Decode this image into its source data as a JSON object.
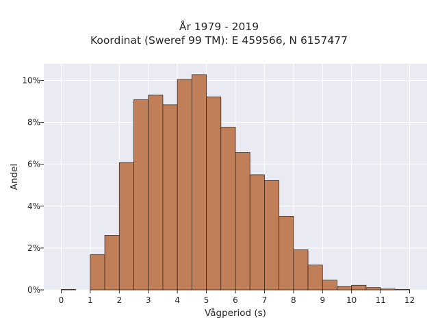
{
  "chart_data": {
    "type": "bar",
    "title": "År 1979 - 2019",
    "subtitle": "Koordinat (Sweref 99 TM): E 459566, N 6157477",
    "xlabel": "Vågperiod (s)",
    "ylabel": "Andel",
    "xlim": [
      -0.6,
      12.6
    ],
    "ylim": [
      0,
      10.8
    ],
    "x_ticks": [
      0,
      1,
      2,
      3,
      4,
      5,
      6,
      7,
      8,
      9,
      10,
      11,
      12
    ],
    "y_ticks": [
      0,
      2,
      4,
      6,
      8,
      10
    ],
    "y_tick_suffix": "%",
    "bin_width": 0.5,
    "bin_starts": [
      0,
      0.5,
      1.0,
      1.5,
      2.0,
      2.5,
      3.0,
      3.5,
      4.0,
      4.5,
      5.0,
      5.5,
      6.0,
      6.5,
      7.0,
      7.5,
      8.0,
      8.5,
      9.0,
      9.5,
      10.0,
      10.5,
      11.0,
      11.5
    ],
    "values": [
      0.02,
      0.0,
      1.68,
      2.6,
      6.08,
      9.08,
      9.3,
      8.84,
      10.05,
      10.28,
      9.22,
      7.77,
      6.56,
      5.5,
      5.22,
      3.52,
      1.92,
      1.19,
      0.47,
      0.17,
      0.22,
      0.11,
      0.05,
      0.02
    ],
    "colors": {
      "bar_fill": "#c07e59",
      "bar_edge": "#3a2a20",
      "plot_bg": "#eaeaf2",
      "grid": "#ffffff"
    },
    "grid": true,
    "legend": "none"
  }
}
